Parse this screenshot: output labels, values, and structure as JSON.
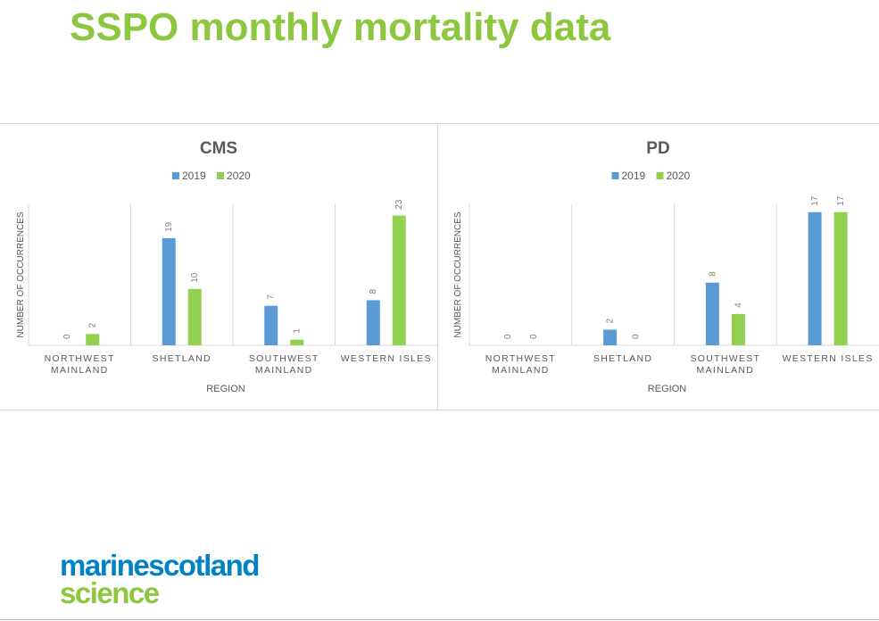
{
  "slide": {
    "title": "SSPO monthly mortality data",
    "logo_line1": "marinescotland",
    "logo_line2": "science"
  },
  "colors": {
    "series2019": "#5b9bd5",
    "series2020": "#92d050",
    "title": "#8dc63f",
    "logo_blue": "#0082c6"
  },
  "chart_data": [
    {
      "type": "bar",
      "title": "CMS",
      "categories": [
        [
          "NORTHWEST",
          "MAINLAND"
        ],
        [
          "SHETLAND"
        ],
        [
          "SOUTHWEST",
          "MAINLAND"
        ],
        [
          "WESTERN ISLES"
        ]
      ],
      "series": [
        {
          "name": "2019",
          "values": [
            0,
            19,
            7,
            8
          ]
        },
        {
          "name": "2020",
          "values": [
            2,
            10,
            1,
            23
          ]
        }
      ],
      "xlabel": "REGION",
      "ylabel": "NUMBER OF OCCURRENCES",
      "ylim": [
        0,
        25
      ],
      "legend": "top"
    },
    {
      "type": "bar",
      "title": "PD",
      "categories": [
        [
          "NORTHWEST",
          "MAINLAND"
        ],
        [
          "SHETLAND"
        ],
        [
          "SOUTHWEST",
          "MAINLAND"
        ],
        [
          "WESTERN ISLES"
        ]
      ],
      "series": [
        {
          "name": "2019",
          "values": [
            0,
            2,
            8,
            17
          ]
        },
        {
          "name": "2020",
          "values": [
            0,
            0,
            4,
            17
          ]
        }
      ],
      "xlabel": "REGION",
      "ylabel": "NUMBER OF OCCURRENCES",
      "ylim": [
        0,
        18
      ],
      "legend": "top"
    }
  ]
}
